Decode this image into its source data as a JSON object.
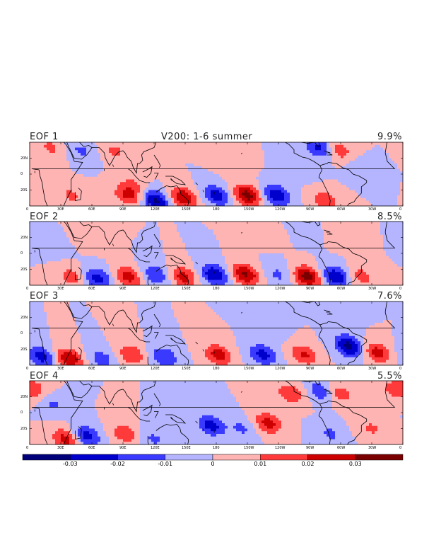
{
  "figure": {
    "title": "V200: 1-6 summer"
  },
  "panels": [
    {
      "label": "EOF 1",
      "variance": "9.9%"
    },
    {
      "label": "EOF 2",
      "variance": "8.5%"
    },
    {
      "label": "EOF 3",
      "variance": "7.6%"
    },
    {
      "label": "EOF 4",
      "variance": "5.5%"
    }
  ],
  "axes": {
    "lon_ticks": [
      "0",
      "30E",
      "60E",
      "90E",
      "120E",
      "150E",
      "180",
      "150W",
      "120W",
      "90W",
      "60W",
      "30W",
      "0"
    ],
    "lat_ticks": [
      "20N",
      "0",
      "20S"
    ]
  },
  "colorbar": {
    "colors": [
      "#00007a",
      "#0000cc",
      "#3a3aff",
      "#b4b4ff",
      "#ffb4b4",
      "#ff3a3a",
      "#cc0000",
      "#7a0000"
    ],
    "labels": [
      "-0.03",
      "-0.02",
      "-0.01",
      "0",
      "0.01",
      "0.02",
      "0.03"
    ]
  },
  "chart_data": {
    "type": "heatmap",
    "variable": "V200",
    "season": "1-6 summer",
    "modes": [
      {
        "name": "EOF 1",
        "explained_variance_pct": 9.9
      },
      {
        "name": "EOF 2",
        "explained_variance_pct": 8.5
      },
      {
        "name": "EOF 3",
        "explained_variance_pct": 7.6
      },
      {
        "name": "EOF 4",
        "explained_variance_pct": 5.5
      }
    ],
    "contour_levels": [
      -0.03,
      -0.02,
      -0.01,
      0,
      0.01,
      0.02,
      0.03
    ],
    "xlim": [
      0,
      360
    ],
    "ylim": [
      -30,
      30
    ],
    "anomaly_centers": [
      [
        {
          "lon": 20,
          "lat": 25,
          "val": 0.012
        },
        {
          "lon": 50,
          "lat": 22,
          "val": -0.012
        },
        {
          "lon": 82,
          "lat": 22,
          "val": 0.012
        },
        {
          "lon": 100,
          "lat": -10,
          "val": 0.01
        },
        {
          "lon": 40,
          "lat": -20,
          "val": 0.012
        },
        {
          "lon": 95,
          "lat": -20,
          "val": 0.022
        },
        {
          "lon": 122,
          "lat": -25,
          "val": -0.032
        },
        {
          "lon": 148,
          "lat": -22,
          "val": 0.03
        },
        {
          "lon": 180,
          "lat": -20,
          "val": -0.025
        },
        {
          "lon": 210,
          "lat": -20,
          "val": 0.035
        },
        {
          "lon": 238,
          "lat": -20,
          "val": -0.03
        },
        {
          "lon": 195,
          "lat": 10,
          "val": 0.008
        },
        {
          "lon": 262,
          "lat": 5,
          "val": -0.009
        },
        {
          "lon": 280,
          "lat": 25,
          "val": -0.025
        },
        {
          "lon": 298,
          "lat": 22,
          "val": 0.018
        },
        {
          "lon": 318,
          "lat": 5,
          "val": -0.008
        },
        {
          "lon": 285,
          "lat": -25,
          "val": 0.018
        }
      ],
      [
        {
          "lon": 20,
          "lat": 8,
          "val": -0.009
        },
        {
          "lon": 58,
          "lat": 15,
          "val": 0.008
        },
        {
          "lon": 40,
          "lat": -22,
          "val": 0.015
        },
        {
          "lon": 66,
          "lat": -24,
          "val": -0.025
        },
        {
          "lon": 95,
          "lat": -22,
          "val": 0.025
        },
        {
          "lon": 122,
          "lat": -20,
          "val": -0.02
        },
        {
          "lon": 148,
          "lat": -22,
          "val": 0.025
        },
        {
          "lon": 178,
          "lat": -20,
          "val": -0.03
        },
        {
          "lon": 208,
          "lat": -20,
          "val": 0.032
        },
        {
          "lon": 240,
          "lat": -20,
          "val": -0.012
        },
        {
          "lon": 268,
          "lat": -22,
          "val": 0.035
        },
        {
          "lon": 295,
          "lat": -22,
          "val": -0.03
        },
        {
          "lon": 320,
          "lat": -22,
          "val": 0.015
        },
        {
          "lon": 230,
          "lat": 20,
          "val": 0.01
        },
        {
          "lon": 265,
          "lat": 22,
          "val": -0.01
        },
        {
          "lon": 300,
          "lat": 18,
          "val": 0.01
        }
      ],
      [
        {
          "lon": 12,
          "lat": -22,
          "val": -0.025
        },
        {
          "lon": 38,
          "lat": -24,
          "val": 0.03
        },
        {
          "lon": 70,
          "lat": -24,
          "val": -0.015
        },
        {
          "lon": 98,
          "lat": -20,
          "val": 0.02
        },
        {
          "lon": 130,
          "lat": -22,
          "val": -0.02
        },
        {
          "lon": 182,
          "lat": -20,
          "val": 0.025
        },
        {
          "lon": 225,
          "lat": -20,
          "val": -0.025
        },
        {
          "lon": 265,
          "lat": -20,
          "val": 0.022
        },
        {
          "lon": 308,
          "lat": -12,
          "val": -0.035
        },
        {
          "lon": 335,
          "lat": -18,
          "val": 0.025
        },
        {
          "lon": 232,
          "lat": 5,
          "val": -0.008
        },
        {
          "lon": 300,
          "lat": 22,
          "val": -0.01
        }
      ],
      [
        {
          "lon": 5,
          "lat": 22,
          "val": 0.015
        },
        {
          "lon": 22,
          "lat": 8,
          "val": -0.012
        },
        {
          "lon": 35,
          "lat": -25,
          "val": 0.025
        },
        {
          "lon": 55,
          "lat": -22,
          "val": -0.025
        },
        {
          "lon": 92,
          "lat": -20,
          "val": 0.018
        },
        {
          "lon": 120,
          "lat": -25,
          "val": -0.012
        },
        {
          "lon": 175,
          "lat": -12,
          "val": -0.025
        },
        {
          "lon": 205,
          "lat": -15,
          "val": -0.012
        },
        {
          "lon": 230,
          "lat": -10,
          "val": 0.025
        },
        {
          "lon": 282,
          "lat": 20,
          "val": -0.02
        },
        {
          "lon": 298,
          "lat": 18,
          "val": 0.018
        },
        {
          "lon": 252,
          "lat": 18,
          "val": 0.02
        },
        {
          "lon": 290,
          "lat": -20,
          "val": -0.012
        },
        {
          "lon": 330,
          "lat": -15,
          "val": 0.012
        },
        {
          "lon": 350,
          "lat": 22,
          "val": 0.012
        }
      ]
    ]
  }
}
